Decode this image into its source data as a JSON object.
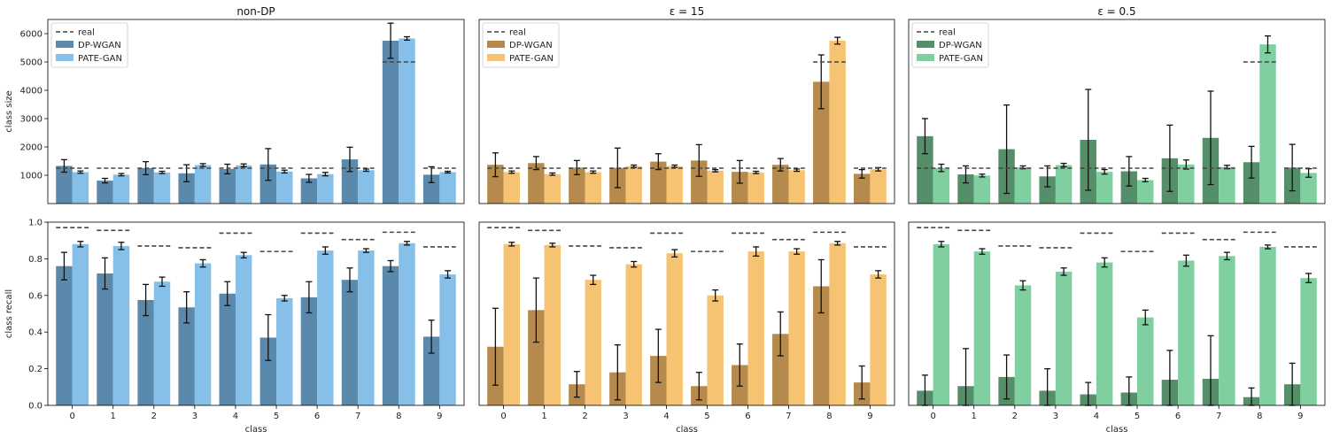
{
  "colors": {
    "real_line": "#444444",
    "errorbar": "#111111",
    "panel_dpwgan": [
      "#5a89ab",
      "#b58a4c",
      "#548f6a"
    ],
    "panel_pategan": [
      "#86c0e8",
      "#f5c372",
      "#7fcfa0"
    ]
  },
  "chart_data": [
    {
      "type": "bar",
      "title": "non-DP",
      "ylabel": "class size",
      "xlabel": "",
      "ylim": [
        0,
        6500
      ],
      "yticks": [
        1000,
        2000,
        3000,
        4000,
        5000,
        6000
      ],
      "categories": [
        "0",
        "1",
        "2",
        "3",
        "4",
        "5",
        "6",
        "7",
        "8",
        "9"
      ],
      "legend": [
        "real",
        "DP-WGAN",
        "PATE-GAN"
      ],
      "real": [
        1250,
        1250,
        1250,
        1250,
        1250,
        1250,
        1250,
        1250,
        5000,
        1250
      ],
      "series": [
        {
          "name": "DP-WGAN",
          "values": [
            1330,
            810,
            1250,
            1070,
            1220,
            1380,
            890,
            1560,
            5750,
            1020
          ],
          "errors": [
            220,
            80,
            230,
            300,
            170,
            560,
            140,
            430,
            620,
            280
          ]
        },
        {
          "name": "PATE-GAN",
          "values": [
            1110,
            1020,
            1100,
            1360,
            1350,
            1130,
            1040,
            1180,
            5830,
            1110
          ],
          "errors": [
            40,
            40,
            40,
            50,
            50,
            50,
            60,
            40,
            60,
            30
          ]
        }
      ]
    },
    {
      "type": "bar",
      "title": "ε = 15",
      "ylabel": "",
      "xlabel": "",
      "ylim": [
        0,
        6500
      ],
      "yticks": [],
      "categories": [
        "0",
        "1",
        "2",
        "3",
        "4",
        "5",
        "6",
        "7",
        "8",
        "9"
      ],
      "legend": [
        "real",
        "DP-WGAN",
        "PATE-GAN"
      ],
      "real": [
        1250,
        1250,
        1250,
        1250,
        1250,
        1250,
        1250,
        1250,
        5000,
        1250
      ],
      "series": [
        {
          "name": "DP-WGAN",
          "values": [
            1370,
            1430,
            1270,
            1260,
            1480,
            1520,
            1120,
            1370,
            4300,
            1050
          ],
          "errors": [
            420,
            230,
            250,
            700,
            280,
            560,
            400,
            220,
            950,
            150
          ]
        },
        {
          "name": "PATE-GAN",
          "values": [
            1110,
            1040,
            1110,
            1320,
            1320,
            1160,
            1100,
            1180,
            5750,
            1210
          ],
          "errors": [
            40,
            40,
            40,
            40,
            40,
            40,
            40,
            40,
            120,
            60
          ]
        }
      ]
    },
    {
      "type": "bar",
      "title": "ε = 0.5",
      "ylabel": "",
      "xlabel": "",
      "ylim": [
        0,
        6500
      ],
      "yticks": [],
      "categories": [
        "0",
        "1",
        "2",
        "3",
        "4",
        "5",
        "6",
        "7",
        "8",
        "9"
      ],
      "legend": [
        "real",
        "DP-WGAN",
        "PATE-GAN"
      ],
      "real": [
        1250,
        1250,
        1250,
        1250,
        1250,
        1250,
        1250,
        1250,
        5000,
        1250
      ],
      "series": [
        {
          "name": "DP-WGAN",
          "values": [
            2380,
            1030,
            1920,
            960,
            2250,
            1140,
            1600,
            2320,
            1460,
            1270
          ],
          "errors": [
            620,
            300,
            1560,
            370,
            1780,
            520,
            1170,
            1650,
            560,
            820
          ]
        },
        {
          "name": "PATE-GAN",
          "values": [
            1260,
            990,
            1280,
            1360,
            1120,
            830,
            1380,
            1290,
            5620,
            1080
          ],
          "errors": [
            130,
            50,
            50,
            60,
            80,
            60,
            160,
            60,
            300,
            150
          ]
        }
      ]
    },
    {
      "type": "bar",
      "title": "",
      "ylabel": "class recall",
      "xlabel": "class",
      "ylim": [
        0,
        1.0
      ],
      "yticks": [
        0.0,
        0.2,
        0.4,
        0.6,
        0.8,
        1.0
      ],
      "categories": [
        "0",
        "1",
        "2",
        "3",
        "4",
        "5",
        "6",
        "7",
        "8",
        "9"
      ],
      "real": [
        0.97,
        0.955,
        0.87,
        0.86,
        0.94,
        0.84,
        0.94,
        0.905,
        0.945,
        0.865
      ],
      "series": [
        {
          "name": "DP-WGAN",
          "values": [
            0.76,
            0.72,
            0.575,
            0.535,
            0.61,
            0.37,
            0.59,
            0.685,
            0.76,
            0.375
          ],
          "errors": [
            0.075,
            0.085,
            0.085,
            0.085,
            0.065,
            0.125,
            0.085,
            0.065,
            0.03,
            0.09
          ]
        },
        {
          "name": "PATE-GAN",
          "values": [
            0.88,
            0.87,
            0.675,
            0.775,
            0.82,
            0.585,
            0.845,
            0.845,
            0.885,
            0.715
          ],
          "errors": [
            0.015,
            0.02,
            0.025,
            0.02,
            0.015,
            0.015,
            0.02,
            0.01,
            0.01,
            0.02
          ]
        }
      ]
    },
    {
      "type": "bar",
      "title": "",
      "ylabel": "",
      "xlabel": "class",
      "ylim": [
        0,
        1.0
      ],
      "yticks": [],
      "categories": [
        "0",
        "1",
        "2",
        "3",
        "4",
        "5",
        "6",
        "7",
        "8",
        "9"
      ],
      "real": [
        0.97,
        0.955,
        0.87,
        0.86,
        0.94,
        0.84,
        0.94,
        0.905,
        0.945,
        0.865
      ],
      "series": [
        {
          "name": "DP-WGAN",
          "values": [
            0.32,
            0.52,
            0.115,
            0.18,
            0.27,
            0.105,
            0.22,
            0.39,
            0.65,
            0.125
          ],
          "errors": [
            0.21,
            0.175,
            0.07,
            0.15,
            0.145,
            0.075,
            0.115,
            0.12,
            0.145,
            0.09
          ]
        },
        {
          "name": "PATE-GAN",
          "values": [
            0.88,
            0.875,
            0.685,
            0.77,
            0.83,
            0.6,
            0.84,
            0.84,
            0.885,
            0.715
          ],
          "errors": [
            0.01,
            0.01,
            0.025,
            0.015,
            0.02,
            0.03,
            0.025,
            0.015,
            0.01,
            0.02
          ]
        }
      ]
    },
    {
      "type": "bar",
      "title": "",
      "ylabel": "",
      "xlabel": "class",
      "ylim": [
        0,
        1.0
      ],
      "yticks": [],
      "categories": [
        "0",
        "1",
        "2",
        "3",
        "4",
        "5",
        "6",
        "7",
        "8",
        "9"
      ],
      "real": [
        0.97,
        0.955,
        0.87,
        0.86,
        0.94,
        0.84,
        0.94,
        0.905,
        0.945,
        0.865
      ],
      "series": [
        {
          "name": "DP-WGAN",
          "values": [
            0.08,
            0.105,
            0.155,
            0.08,
            0.06,
            0.07,
            0.14,
            0.145,
            0.045,
            0.115
          ],
          "errors": [
            0.085,
            0.205,
            0.12,
            0.12,
            0.065,
            0.085,
            0.16,
            0.235,
            0.05,
            0.115
          ]
        },
        {
          "name": "PATE-GAN",
          "values": [
            0.88,
            0.84,
            0.655,
            0.73,
            0.78,
            0.48,
            0.79,
            0.815,
            0.865,
            0.695
          ],
          "errors": [
            0.015,
            0.015,
            0.025,
            0.02,
            0.025,
            0.04,
            0.03,
            0.02,
            0.01,
            0.025
          ]
        }
      ]
    }
  ]
}
